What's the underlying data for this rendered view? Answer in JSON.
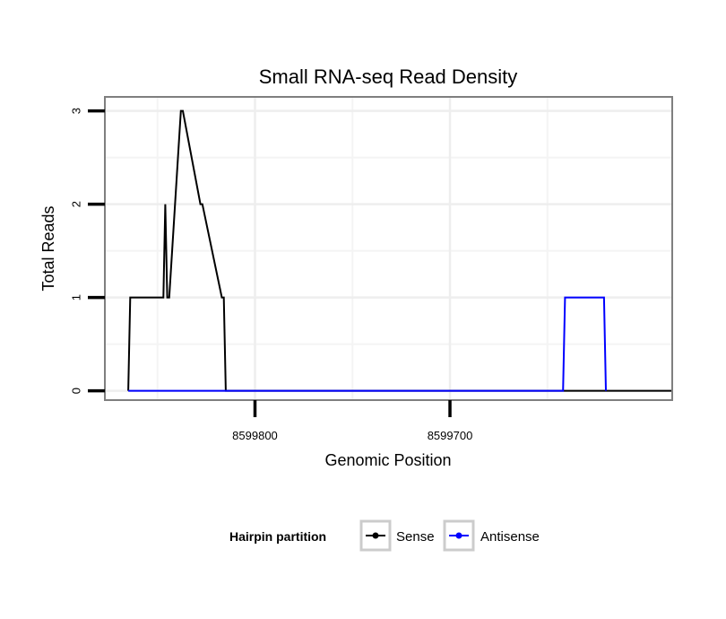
{
  "chart_data": {
    "type": "line",
    "title": "Small RNA-seq Read Density",
    "xlabel": "Genomic Position",
    "ylabel": "Total Reads",
    "x_reversed": true,
    "xlim": [
      8599877,
      8599586
    ],
    "ylim": [
      -0.1,
      3.15
    ],
    "x_ticks": [
      8599800,
      8599700
    ],
    "x_tick_labels": [
      "8599800",
      "8599700"
    ],
    "y_ticks": [
      0,
      1,
      2,
      3
    ],
    "y_tick_labels": [
      "0",
      "1",
      "2",
      "3"
    ],
    "grid": true,
    "legend": {
      "title": "Hairpin partition",
      "position": "bottom"
    },
    "series": [
      {
        "name": "Sense",
        "color": "#000000",
        "x": [
          8599865,
          8599864,
          8599847,
          8599846,
          8599845,
          8599844,
          8599838,
          8599837,
          8599828,
          8599827,
          8599817,
          8599816,
          8599815,
          8599813,
          8599812,
          8599586
        ],
        "y": [
          0,
          1,
          1,
          2,
          1,
          1,
          3,
          3,
          2,
          2,
          1,
          1,
          0,
          0,
          0,
          0
        ]
      },
      {
        "name": "Antisense",
        "color": "#0000ff",
        "x": [
          8599865,
          8599812,
          8599803,
          8599642,
          8599641,
          8599621,
          8599620
        ],
        "y": [
          0,
          0,
          0,
          0,
          1,
          1,
          0
        ]
      }
    ]
  }
}
